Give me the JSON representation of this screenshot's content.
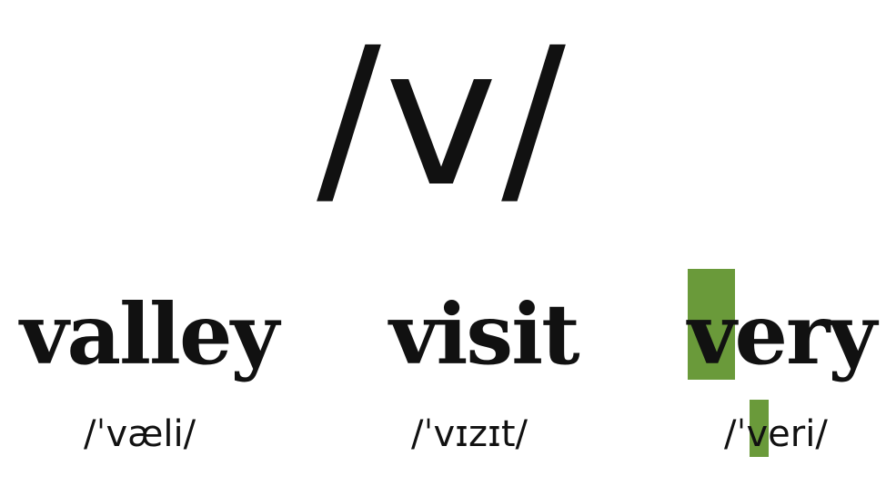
{
  "phoneme": "/v/",
  "highlight_color": "#6a9a3a",
  "examples": [
    {
      "word": "valley",
      "ipa": "/ˈvæli/"
    },
    {
      "word": "visit",
      "ipa": "/ˈvɪzɪt/"
    },
    {
      "word": "very",
      "ipa": "/ˈveri/",
      "highlighted": true
    }
  ]
}
